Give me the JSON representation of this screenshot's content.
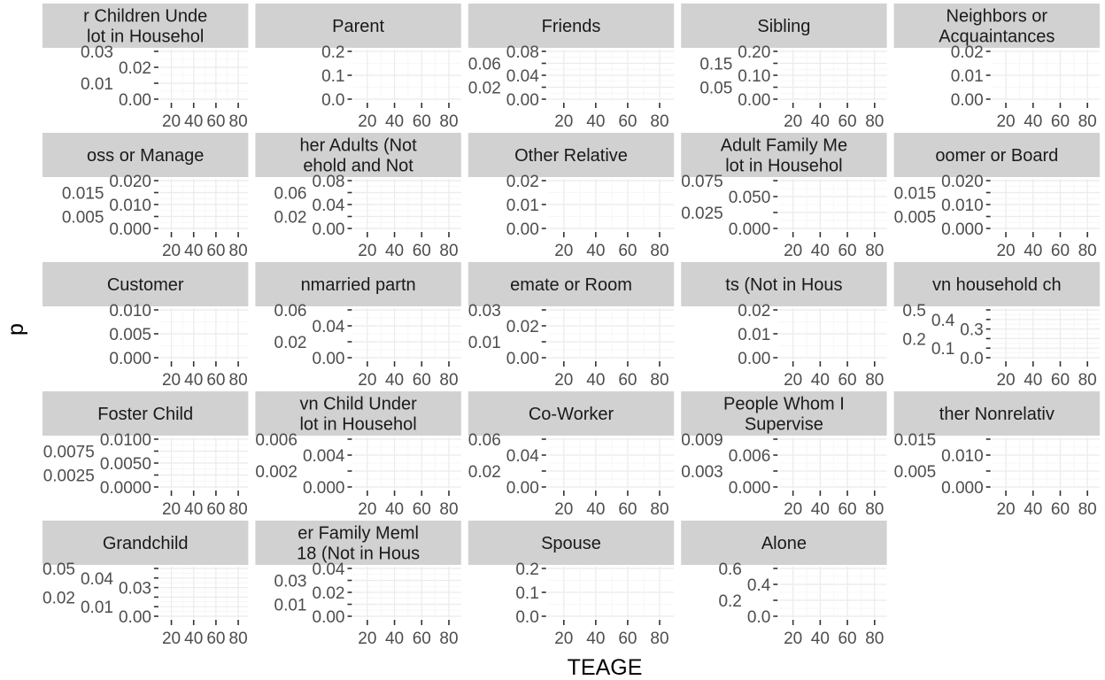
{
  "chart_data": {
    "type": "line",
    "xlabel": "TEAGE",
    "ylabel": "p",
    "x_ticks": [
      20,
      40,
      60,
      80
    ],
    "xlim": [
      10,
      89
    ],
    "grid": true,
    "colors": {
      "strip": "#d1d1d1",
      "grid": "#ebebeb",
      "tick_text": "#4d4d4d",
      "tick": "#333333"
    },
    "facets": [
      {
        "strip": [
          "r Children Unde",
          "lot in Househol"
        ],
        "y_ticks": [
          "0.00",
          "0.01",
          "0.02",
          "0.03"
        ]
      },
      {
        "strip": [
          "Parent"
        ],
        "y_ticks": [
          "0.0",
          "0.1",
          "0.2"
        ]
      },
      {
        "strip": [
          "Friends"
        ],
        "y_ticks": [
          "0.00",
          "0.02",
          "0.04",
          "0.06",
          "0.08"
        ]
      },
      {
        "strip": [
          "Sibling"
        ],
        "y_ticks": [
          "0.00",
          "0.05",
          "0.10",
          "0.15",
          "0.20"
        ]
      },
      {
        "strip": [
          "Neighbors or",
          "Acquaintances"
        ],
        "y_ticks": [
          "0.00",
          "0.01",
          "0.02"
        ]
      },
      {
        "strip": [
          "oss or Manage"
        ],
        "y_ticks": [
          "0.000",
          "0.005",
          "0.010",
          "0.015",
          "0.020"
        ]
      },
      {
        "strip": [
          "her Adults (Not",
          "ehold and Not"
        ],
        "y_ticks": [
          "0.00",
          "0.02",
          "0.04",
          "0.06",
          "0.08"
        ]
      },
      {
        "strip": [
          "Other Relative"
        ],
        "y_ticks": [
          "0.00",
          "0.01",
          "0.02"
        ]
      },
      {
        "strip": [
          "Adult Family Me",
          "lot in Househol"
        ],
        "y_ticks": [
          "0.000",
          "0.025",
          "0.050",
          "0.075"
        ]
      },
      {
        "strip": [
          "oomer or Board"
        ],
        "y_ticks": [
          "0.000",
          "0.005",
          "0.010",
          "0.015",
          "0.020"
        ]
      },
      {
        "strip": [
          "Customer"
        ],
        "y_ticks": [
          "0.000",
          "0.005",
          "0.010"
        ]
      },
      {
        "strip": [
          "nmarried partn"
        ],
        "y_ticks": [
          "0.00",
          "0.02",
          "0.04",
          "0.06"
        ]
      },
      {
        "strip": [
          "emate or Room"
        ],
        "y_ticks": [
          "0.00",
          "0.01",
          "0.02",
          "0.03"
        ]
      },
      {
        "strip": [
          "ts (Not in Hous"
        ],
        "y_ticks": [
          "0.00",
          "0.01",
          "0.02"
        ]
      },
      {
        "strip": [
          "vn household ch"
        ],
        "y_ticks": [
          "0.0",
          "0.1",
          "0.2",
          "0.3",
          "0.4",
          "0.5"
        ]
      },
      {
        "strip": [
          "Foster Child"
        ],
        "y_ticks": [
          "0.0000",
          "0.0025",
          "0.0050",
          "0.0075",
          "0.0100"
        ]
      },
      {
        "strip": [
          "vn Child Under",
          "lot in Househol"
        ],
        "y_ticks": [
          "0.000",
          "0.002",
          "0.004",
          "0.006"
        ]
      },
      {
        "strip": [
          "Co-Worker"
        ],
        "y_ticks": [
          "0.00",
          "0.02",
          "0.04",
          "0.06"
        ]
      },
      {
        "strip": [
          "People Whom I",
          "Supervise"
        ],
        "y_ticks": [
          "0.000",
          "0.003",
          "0.006",
          "0.009"
        ]
      },
      {
        "strip": [
          "ther Nonrelativ"
        ],
        "y_ticks": [
          "0.000",
          "0.005",
          "0.010",
          "0.015"
        ]
      },
      {
        "strip": [
          "Grandchild"
        ],
        "y_ticks": [
          "0.00",
          "0.01",
          "0.02",
          "0.03",
          "0.04",
          "0.05"
        ]
      },
      {
        "strip": [
          "er Family Meml",
          "18 (Not in Hous"
        ],
        "y_ticks": [
          "0.00",
          "0.01",
          "0.02",
          "0.03",
          "0.04"
        ]
      },
      {
        "strip": [
          "Spouse"
        ],
        "y_ticks": [
          "0.0",
          "0.1",
          "0.2"
        ]
      },
      {
        "strip": [
          "Alone"
        ],
        "y_ticks": [
          "0.0",
          "0.2",
          "0.4",
          "0.6"
        ]
      }
    ]
  }
}
